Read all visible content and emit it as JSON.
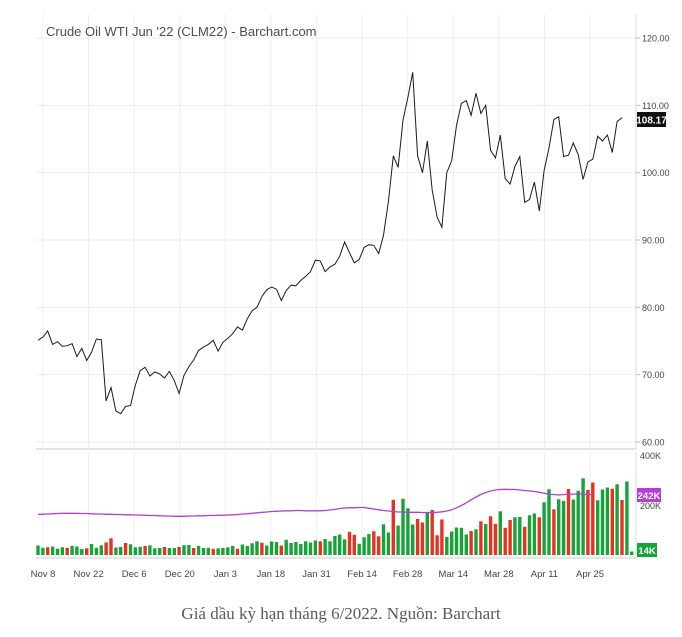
{
  "caption": "Giá dầu kỳ hạn tháng 6/2022. Nguồn: Barchart",
  "chart_data": {
    "type": "line",
    "title": "Crude Oil WTI Jun '22 (CLM22) - Barchart.com",
    "price": {
      "ylim": [
        60,
        120
      ],
      "yticks": [
        "60.00",
        "70.00",
        "80.00",
        "90.00",
        "100.00",
        "110.00",
        "120.00"
      ],
      "last_label": "108.17",
      "last_value": 108.17,
      "line_color": "#1a1a1a",
      "values": [
        75.1,
        75.6,
        76.5,
        74.5,
        74.9,
        74.2,
        74.3,
        74.6,
        72.7,
        73.9,
        72.1,
        73.3,
        75.3,
        75.2,
        66.1,
        68.1,
        64.6,
        64.2,
        65.3,
        65.4,
        68.4,
        70.6,
        71.1,
        69.8,
        70.4,
        70.1,
        69.5,
        70.5,
        69.1,
        67.2,
        69.9,
        71.2,
        72.2,
        73.6,
        74.1,
        74.5,
        75.1,
        73.5,
        74.8,
        75.4,
        76.1,
        77.1,
        76.6,
        78.3,
        79.5,
        80.0,
        81.6,
        82.6,
        83.0,
        82.7,
        81.0,
        82.5,
        83.3,
        83.2,
        84.0,
        84.6,
        85.3,
        87.0,
        86.9,
        85.3,
        86.0,
        86.4,
        87.6,
        89.7,
        88.1,
        86.6,
        87.1,
        88.9,
        89.3,
        89.2,
        88.0,
        90.7,
        95.7,
        102.5,
        100.8,
        107.8,
        111.2,
        114.9,
        102.5,
        100.0,
        104.7,
        97.4,
        93.4,
        91.9,
        100.0,
        101.8,
        107.0,
        110.3,
        110.7,
        108.5,
        111.8,
        108.8,
        110.0,
        103.3,
        102.2,
        105.6,
        99.1,
        98.3,
        100.9,
        102.4,
        95.6,
        96.0,
        98.6,
        94.3,
        100.3,
        103.7,
        107.9,
        108.3,
        102.4,
        102.6,
        104.4,
        102.7,
        99.0,
        101.6,
        102.0,
        105.4,
        104.7,
        105.6,
        103.0,
        107.6,
        108.17
      ],
      "ma_color": "#c36be0"
    },
    "volume": {
      "ylim": [
        0,
        400
      ],
      "ticks": [
        "400K",
        "200K"
      ],
      "avg_label": "242K",
      "last_label": "14K",
      "up_color": "#17a33a",
      "down_color": "#e8321f",
      "avg_color": "#b33fd6",
      "values": [
        38,
        29,
        31,
        34,
        25,
        31,
        29,
        36,
        34,
        24,
        27,
        44,
        29,
        39,
        50,
        67,
        30,
        32,
        48,
        43,
        31,
        33,
        36,
        39,
        27,
        28,
        32,
        28,
        28,
        32,
        39,
        40,
        28,
        37,
        28,
        29,
        25,
        27,
        28,
        31,
        36,
        25,
        42,
        36,
        47,
        55,
        49,
        38,
        54,
        52,
        38,
        61,
        48,
        52,
        44,
        55,
        50,
        58,
        55,
        64,
        55,
        76,
        82,
        63,
        93,
        81,
        45,
        71,
        84,
        95,
        75,
        123,
        90,
        221,
        118,
        225,
        187,
        122,
        144,
        130,
        168,
        180,
        79,
        142,
        72,
        94,
        110,
        109,
        82,
        96,
        103,
        135,
        124,
        155,
        125,
        175,
        109,
        140,
        151,
        152,
        113,
        159,
        166,
        151,
        211,
        263,
        183,
        223,
        217,
        264,
        222,
        257,
        307,
        260,
        290,
        219,
        262,
        270,
        265,
        283,
        220,
        294,
        14
      ],
      "up": [
        1,
        1,
        0,
        1,
        1,
        1,
        0,
        1,
        1,
        1,
        0,
        1,
        1,
        1,
        0,
        0,
        1,
        1,
        0,
        1,
        1,
        1,
        0,
        1,
        1,
        1,
        0,
        1,
        1,
        0,
        1,
        1,
        0,
        1,
        1,
        1,
        0,
        1,
        1,
        1,
        1,
        0,
        1,
        1,
        1,
        1,
        0,
        1,
        1,
        1,
        0,
        1,
        1,
        1,
        1,
        1,
        1,
        1,
        0,
        1,
        1,
        1,
        1,
        1,
        0,
        0,
        1,
        1,
        1,
        0,
        0,
        1,
        1,
        0,
        1,
        1,
        1,
        1,
        0,
        0,
        1,
        0,
        0,
        0,
        1,
        1,
        1,
        1,
        1,
        0,
        1,
        0,
        1,
        0,
        0,
        1,
        0,
        0,
        1,
        1,
        0,
        1,
        1,
        0,
        1,
        1,
        0,
        1,
        1,
        0,
        1,
        1,
        1,
        0,
        0,
        1,
        1,
        1,
        0,
        1,
        0,
        1,
        1
      ],
      "avg": [
        163,
        163,
        164,
        165,
        166,
        167,
        167,
        167,
        167,
        166,
        166,
        165,
        164,
        164,
        163,
        163,
        162,
        162,
        161,
        161,
        160,
        160,
        159,
        158,
        158,
        157,
        156,
        156,
        155,
        155,
        155,
        156,
        156,
        157,
        157,
        158,
        158,
        159,
        159,
        160,
        161,
        162,
        164,
        165,
        167,
        169,
        171,
        172,
        174,
        175,
        176,
        177,
        177,
        178,
        178,
        177,
        177,
        177,
        177,
        178,
        180,
        182,
        186,
        188,
        189,
        189,
        190,
        190,
        187,
        184,
        181,
        178,
        176,
        174,
        172,
        172,
        171,
        171,
        171,
        170,
        170,
        170,
        171,
        173,
        176,
        181,
        189,
        198,
        209,
        221,
        232,
        242,
        250,
        256,
        260,
        262,
        263,
        262,
        262,
        260,
        258,
        256,
        254,
        251,
        247,
        243,
        242,
        240,
        242,
        243,
        244,
        244,
        243,
        242,
        242
      ]
    },
    "x_ticks": [
      "Nov 8",
      "Nov 22",
      "Dec 6",
      "Dec 20",
      "Jan 3",
      "Jan 18",
      "Jan 31",
      "Feb 14",
      "Feb 28",
      "Mar 14",
      "Mar 28",
      "Apr 11",
      "Apr 25"
    ],
    "grid": true
  }
}
